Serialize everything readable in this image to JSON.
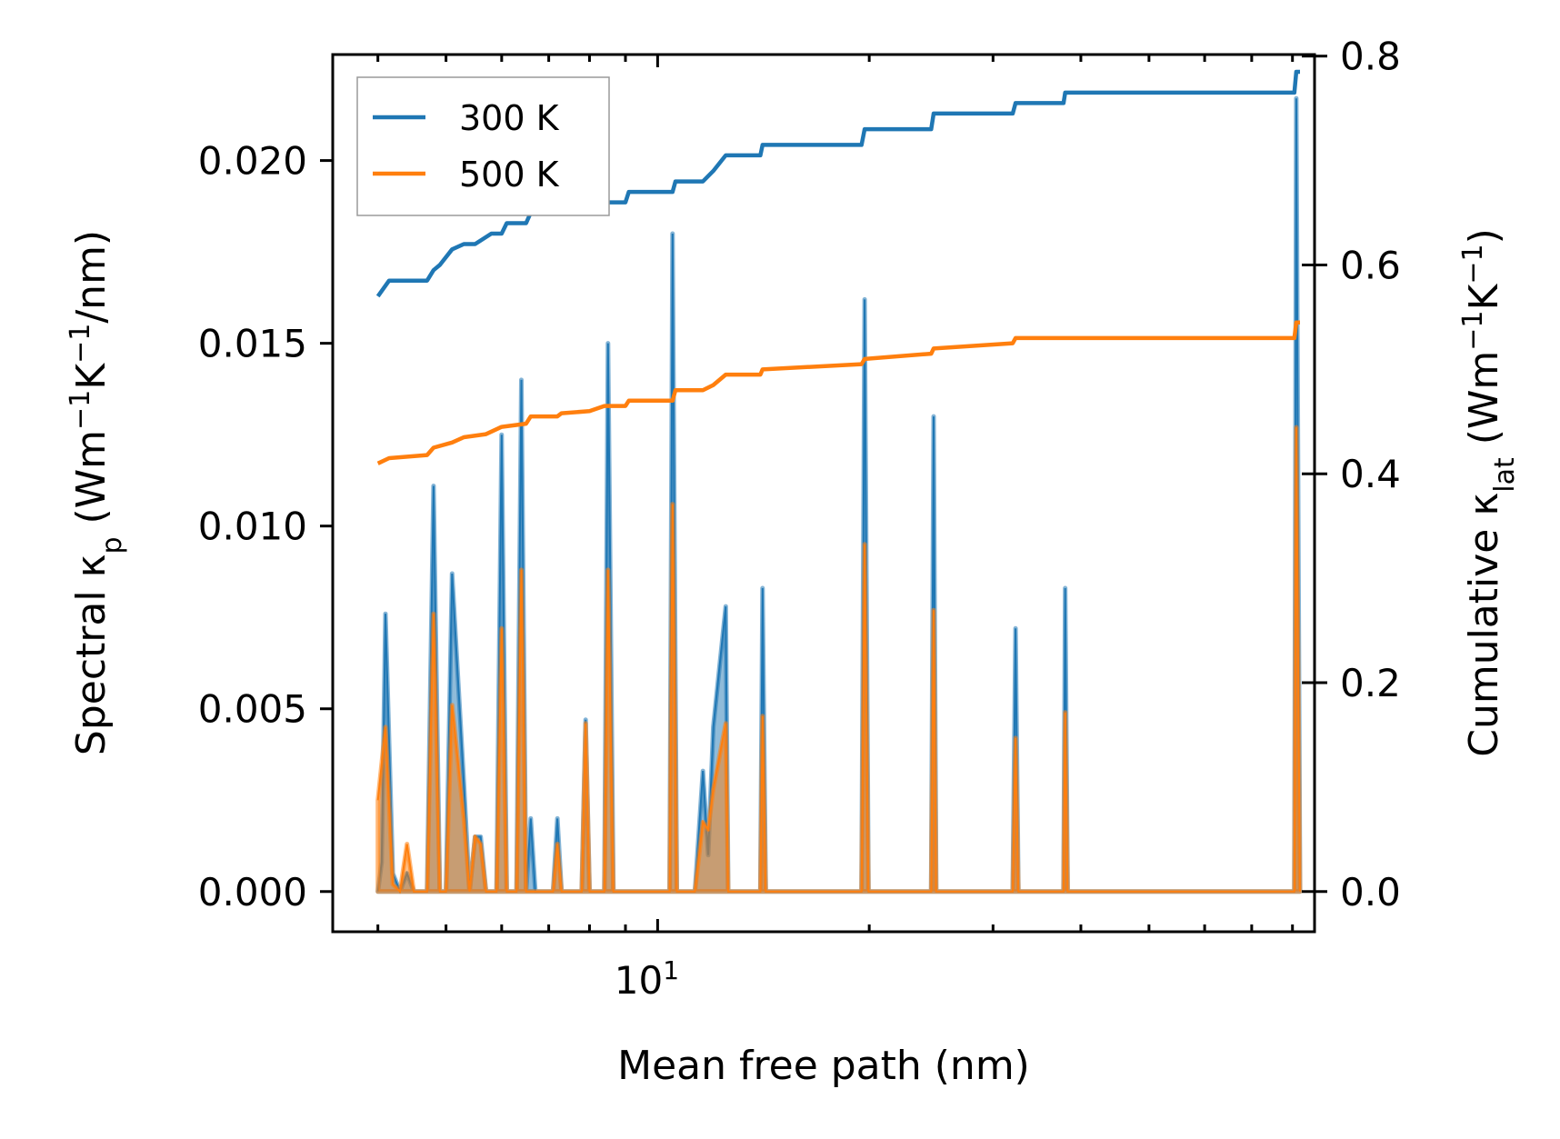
{
  "chart_data": {
    "type": "line",
    "x_scale": "log",
    "xlabel": "Mean free path (nm)",
    "ylabel_left": {
      "main": "Spectral κ",
      "sub": "p",
      "units_prefix": " (Wm",
      "exp1": "−1",
      "mid": "K",
      "exp2": "−1",
      "tail": "/nm)"
    },
    "ylabel_right": {
      "main": "Cumulative κ",
      "sub": "lat",
      "units_prefix": " (Wm",
      "exp1": "−1",
      "mid": "K",
      "exp2": "−1",
      "tail": ")"
    },
    "xlim": [
      3.45,
      86
    ],
    "ylim_left": [
      -0.0011,
      0.0229
    ],
    "ylim_right": [
      -0.0385,
      0.8015
    ],
    "x_ticks": [
      {
        "value": 10,
        "base": "10",
        "exp": "1"
      }
    ],
    "y_ticks_left": [
      {
        "value": 0.0,
        "label": "0.000"
      },
      {
        "value": 0.005,
        "label": "0.005"
      },
      {
        "value": 0.01,
        "label": "0.010"
      },
      {
        "value": 0.015,
        "label": "0.015"
      },
      {
        "value": 0.02,
        "label": "0.020"
      }
    ],
    "y_ticks_right": [
      {
        "value": 0.0,
        "label": "0.0"
      },
      {
        "value": 0.2,
        "label": "0.2"
      },
      {
        "value": 0.4,
        "label": "0.4"
      },
      {
        "value": 0.6,
        "label": "0.6"
      },
      {
        "value": 0.8,
        "label": "0.8"
      }
    ],
    "legend": {
      "position": "top-left",
      "entries": [
        "300 K",
        "500 K"
      ]
    },
    "series": [
      {
        "name": "300 K",
        "color": "#1f77b4",
        "spectral": [
          [
            4.0,
            0.0
          ],
          [
            4.05,
            0.0008
          ],
          [
            4.1,
            0.0076
          ],
          [
            4.2,
            0.0005
          ],
          [
            4.3,
            0.0
          ],
          [
            4.4,
            0.0005
          ],
          [
            4.5,
            0.0
          ],
          [
            4.7,
            0.0
          ],
          [
            4.8,
            0.0111
          ],
          [
            4.9,
            0.0
          ],
          [
            5.0,
            0.0
          ],
          [
            5.1,
            0.0087
          ],
          [
            5.3,
            0.003
          ],
          [
            5.4,
            0.0
          ],
          [
            5.5,
            0.0015
          ],
          [
            5.6,
            0.0015
          ],
          [
            5.7,
            0.0
          ],
          [
            5.9,
            0.0
          ],
          [
            6.0,
            0.0125
          ],
          [
            6.1,
            0.0
          ],
          [
            6.3,
            0.0
          ],
          [
            6.4,
            0.014
          ],
          [
            6.5,
            0.0
          ],
          [
            6.6,
            0.002
          ],
          [
            6.7,
            0.0
          ],
          [
            7.1,
            0.0
          ],
          [
            7.2,
            0.002
          ],
          [
            7.3,
            0.0
          ],
          [
            7.8,
            0.0
          ],
          [
            7.9,
            0.0047
          ],
          [
            8.0,
            0.0
          ],
          [
            8.4,
            0.0
          ],
          [
            8.5,
            0.015
          ],
          [
            8.65,
            0.0
          ],
          [
            10.4,
            0.0
          ],
          [
            10.5,
            0.018
          ],
          [
            10.65,
            0.0
          ],
          [
            11.3,
            0.0
          ],
          [
            11.6,
            0.0033
          ],
          [
            11.8,
            0.001
          ],
          [
            12.0,
            0.0045
          ],
          [
            12.5,
            0.0078
          ],
          [
            12.6,
            0.0
          ],
          [
            14.0,
            0.0
          ],
          [
            14.1,
            0.0083
          ],
          [
            14.25,
            0.0
          ],
          [
            19.5,
            0.0
          ],
          [
            19.7,
            0.0162
          ],
          [
            19.95,
            0.0
          ],
          [
            24.5,
            0.0
          ],
          [
            24.7,
            0.013
          ],
          [
            24.9,
            0.0
          ],
          [
            32.0,
            0.0
          ],
          [
            32.3,
            0.0072
          ],
          [
            32.6,
            0.0
          ],
          [
            37.8,
            0.0
          ],
          [
            38.0,
            0.0083
          ],
          [
            38.3,
            0.0
          ],
          [
            80.5,
            0.0
          ],
          [
            81.0,
            0.0217
          ],
          [
            82.0,
            0.0
          ]
        ],
        "cumulative": [
          [
            4.0,
            0.57
          ],
          [
            4.15,
            0.585
          ],
          [
            4.7,
            0.585
          ],
          [
            4.8,
            0.595
          ],
          [
            4.9,
            0.6
          ],
          [
            5.1,
            0.615
          ],
          [
            5.3,
            0.62
          ],
          [
            5.5,
            0.62
          ],
          [
            5.8,
            0.63
          ],
          [
            6.0,
            0.63
          ],
          [
            6.1,
            0.64
          ],
          [
            6.5,
            0.64
          ],
          [
            6.6,
            0.65
          ],
          [
            7.2,
            0.65
          ],
          [
            7.5,
            0.655
          ],
          [
            8.0,
            0.655
          ],
          [
            8.4,
            0.66
          ],
          [
            9.0,
            0.66
          ],
          [
            9.1,
            0.67
          ],
          [
            10.5,
            0.67
          ],
          [
            10.6,
            0.68
          ],
          [
            11.6,
            0.68
          ],
          [
            12.0,
            0.69
          ],
          [
            12.5,
            0.705
          ],
          [
            14.0,
            0.705
          ],
          [
            14.1,
            0.715
          ],
          [
            19.5,
            0.715
          ],
          [
            19.7,
            0.73
          ],
          [
            24.5,
            0.73
          ],
          [
            24.7,
            0.745
          ],
          [
            32.0,
            0.745
          ],
          [
            32.3,
            0.755
          ],
          [
            37.8,
            0.755
          ],
          [
            38.0,
            0.765
          ],
          [
            80.5,
            0.765
          ],
          [
            81.0,
            0.785
          ],
          [
            82.0,
            0.785
          ]
        ]
      },
      {
        "name": "500 K",
        "color": "#ff7f0e",
        "spectral": [
          [
            4.0,
            0.0025
          ],
          [
            4.1,
            0.0045
          ],
          [
            4.2,
            0.0002
          ],
          [
            4.3,
            0.0
          ],
          [
            4.4,
            0.0013
          ],
          [
            4.5,
            0.0
          ],
          [
            4.7,
            0.0
          ],
          [
            4.8,
            0.0076
          ],
          [
            4.9,
            0.0
          ],
          [
            5.0,
            0.0
          ],
          [
            5.1,
            0.0051
          ],
          [
            5.3,
            0.002
          ],
          [
            5.4,
            0.0
          ],
          [
            5.5,
            0.0015
          ],
          [
            5.6,
            0.0013
          ],
          [
            5.7,
            0.0
          ],
          [
            5.9,
            0.0
          ],
          [
            6.0,
            0.0072
          ],
          [
            6.1,
            0.0
          ],
          [
            6.3,
            0.0
          ],
          [
            6.4,
            0.0088
          ],
          [
            6.5,
            0.0
          ],
          [
            6.6,
            0.0
          ],
          [
            7.1,
            0.0
          ],
          [
            7.2,
            0.0013
          ],
          [
            7.3,
            0.0
          ],
          [
            7.8,
            0.0
          ],
          [
            7.9,
            0.0046
          ],
          [
            8.0,
            0.0
          ],
          [
            8.4,
            0.0
          ],
          [
            8.5,
            0.0088
          ],
          [
            8.65,
            0.0
          ],
          [
            10.4,
            0.0
          ],
          [
            10.5,
            0.0106
          ],
          [
            10.65,
            0.0
          ],
          [
            11.3,
            0.0
          ],
          [
            11.6,
            0.0019
          ],
          [
            11.8,
            0.0017
          ],
          [
            12.0,
            0.0028
          ],
          [
            12.5,
            0.0046
          ],
          [
            12.6,
            0.0
          ],
          [
            14.0,
            0.0
          ],
          [
            14.1,
            0.0048
          ],
          [
            14.25,
            0.0
          ],
          [
            19.5,
            0.0
          ],
          [
            19.7,
            0.0095
          ],
          [
            19.95,
            0.0
          ],
          [
            24.5,
            0.0
          ],
          [
            24.7,
            0.0077
          ],
          [
            24.9,
            0.0
          ],
          [
            32.0,
            0.0
          ],
          [
            32.3,
            0.0042
          ],
          [
            32.6,
            0.0
          ],
          [
            37.8,
            0.0
          ],
          [
            38.0,
            0.0049
          ],
          [
            38.3,
            0.0
          ],
          [
            80.5,
            0.0
          ],
          [
            81.0,
            0.0127
          ],
          [
            82.0,
            0.0
          ]
        ],
        "cumulative": [
          [
            4.0,
            0.41
          ],
          [
            4.15,
            0.415
          ],
          [
            4.7,
            0.418
          ],
          [
            4.8,
            0.425
          ],
          [
            5.1,
            0.43
          ],
          [
            5.3,
            0.435
          ],
          [
            5.7,
            0.438
          ],
          [
            6.0,
            0.445
          ],
          [
            6.5,
            0.448
          ],
          [
            6.6,
            0.455
          ],
          [
            7.2,
            0.455
          ],
          [
            7.3,
            0.458
          ],
          [
            8.0,
            0.46
          ],
          [
            8.4,
            0.465
          ],
          [
            9.0,
            0.465
          ],
          [
            9.1,
            0.47
          ],
          [
            10.5,
            0.47
          ],
          [
            10.6,
            0.48
          ],
          [
            11.6,
            0.48
          ],
          [
            12.0,
            0.485
          ],
          [
            12.5,
            0.495
          ],
          [
            14.0,
            0.495
          ],
          [
            14.1,
            0.5
          ],
          [
            19.5,
            0.505
          ],
          [
            19.7,
            0.51
          ],
          [
            24.5,
            0.515
          ],
          [
            24.7,
            0.52
          ],
          [
            32.0,
            0.525
          ],
          [
            32.3,
            0.53
          ],
          [
            80.5,
            0.53
          ],
          [
            81.0,
            0.545
          ],
          [
            82.0,
            0.545
          ]
        ]
      }
    ]
  }
}
